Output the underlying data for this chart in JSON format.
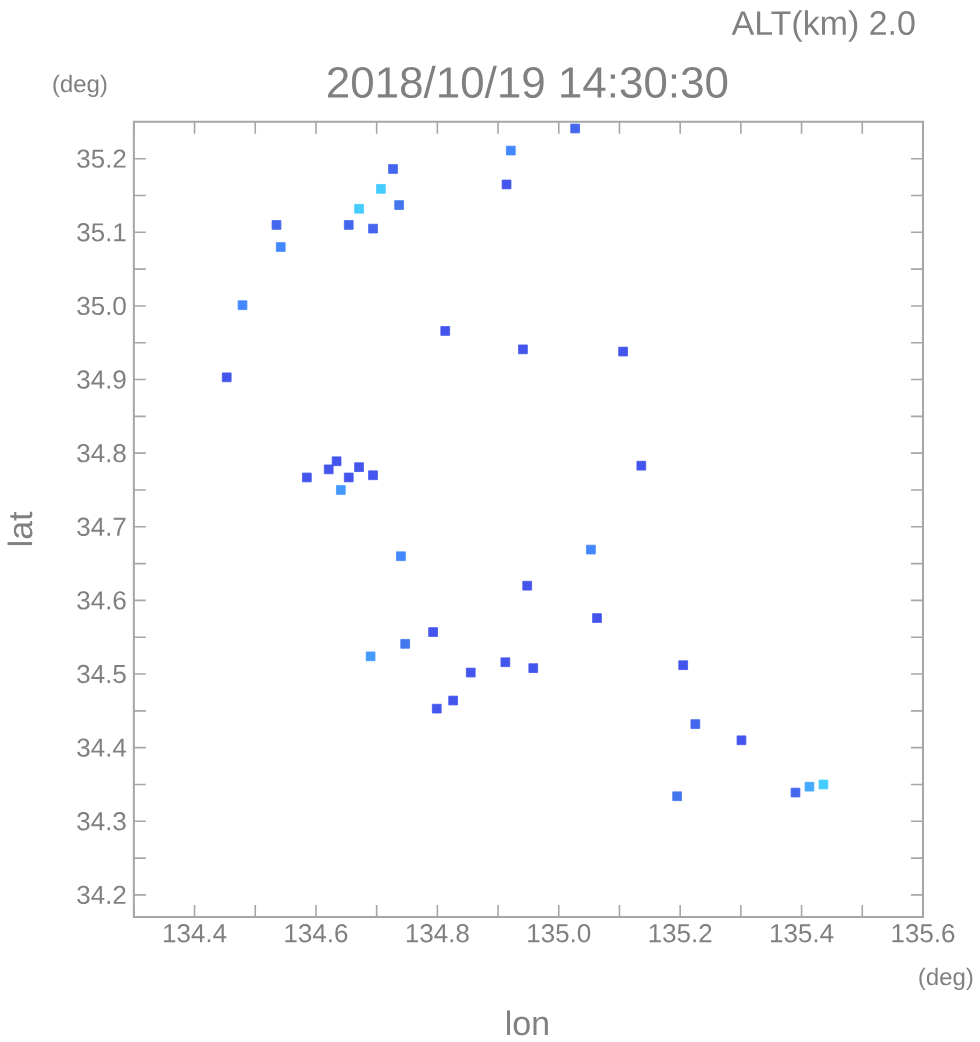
{
  "chart_data": {
    "type": "scatter",
    "title": "2018/10/19 14:30:30",
    "xlabel": "lon",
    "ylabel": "lat",
    "annotations": [
      "ALT(km) 2.0",
      "(deg)",
      "(deg)"
    ],
    "x": [
      135.027,
      134.921,
      134.914,
      134.727,
      134.707,
      134.737,
      134.671,
      134.694,
      134.654,
      134.542,
      134.535,
      134.479,
      134.453,
      134.813,
      134.941,
      135.106,
      134.585,
      134.621,
      134.634,
      134.654,
      134.671,
      134.694,
      134.641,
      134.74,
      135.053,
      135.136,
      134.948,
      135.063,
      134.69,
      134.747,
      134.793,
      134.912,
      134.855,
      134.826,
      134.799,
      135.205,
      134.958,
      135.225,
      135.301,
      135.195,
      135.39,
      135.413,
      135.436
    ],
    "values": [
      35.241,
      35.211,
      35.165,
      35.186,
      35.159,
      35.137,
      35.132,
      35.105,
      35.11,
      35.08,
      35.11,
      35.001,
      34.903,
      34.966,
      34.941,
      34.938,
      34.767,
      34.778,
      34.789,
      34.767,
      34.781,
      34.77,
      34.75,
      34.66,
      34.669,
      34.783,
      34.62,
      34.576,
      34.524,
      34.541,
      34.557,
      34.516,
      34.502,
      34.464,
      34.453,
      34.512,
      34.508,
      34.432,
      34.41,
      34.334,
      34.339,
      34.347,
      34.35
    ],
    "colors": [
      "#4466ee",
      "#4488ff",
      "#4455ee",
      "#4466ee",
      "#44ccff",
      "#4477ee",
      "#44ccff",
      "#4466ee",
      "#4466ee",
      "#4488ff",
      "#4466ee",
      "#4488ff",
      "#4455ee",
      "#4455ee",
      "#4455ee",
      "#4455ee",
      "#4455ee",
      "#4455ee",
      "#4455ee",
      "#4455ee",
      "#4455ee",
      "#4455ee",
      "#4499ff",
      "#4488ff",
      "#4488ff",
      "#4455ee",
      "#4455ee",
      "#4455ee",
      "#4499ff",
      "#4477ee",
      "#4455ee",
      "#4455ee",
      "#4455ee",
      "#4455ee",
      "#4455ee",
      "#4455ee",
      "#4455ee",
      "#4466ee",
      "#4455ee",
      "#4477ee",
      "#4466ee",
      "#44aaff",
      "#44ccff"
    ],
    "marker": "square",
    "xlim": [
      134.3,
      135.6
    ],
    "ylim": [
      34.17,
      35.25
    ],
    "xticks": [
      {
        "value": 134.3,
        "label": null
      },
      134.4,
      {
        "value": 134.5,
        "label": null
      },
      134.6,
      {
        "value": 134.7,
        "label": null
      },
      134.8,
      {
        "value": 134.9,
        "label": null
      },
      {
        "value": 135.0,
        "label": "135.0"
      },
      {
        "value": 135.1,
        "label": null
      },
      135.2,
      {
        "value": 135.3,
        "label": null
      },
      135.4,
      {
        "value": 135.5,
        "label": null
      },
      135.6
    ],
    "yticks": [
      34.2,
      {
        "value": 34.25,
        "label": null
      },
      34.3,
      {
        "value": 34.35,
        "label": null
      },
      34.4,
      {
        "value": 34.45,
        "label": null
      },
      34.5,
      {
        "value": 34.55,
        "label": null
      },
      34.6,
      {
        "value": 34.65,
        "label": null
      },
      34.7,
      {
        "value": 34.75,
        "label": null
      },
      34.8,
      {
        "value": 34.85,
        "label": null
      },
      34.9,
      {
        "value": 34.95,
        "label": null
      },
      {
        "value": 35.0,
        "label": "35.0"
      },
      {
        "value": 35.05,
        "label": null
      },
      35.1,
      {
        "value": 35.15,
        "label": null
      },
      35.2
    ]
  }
}
